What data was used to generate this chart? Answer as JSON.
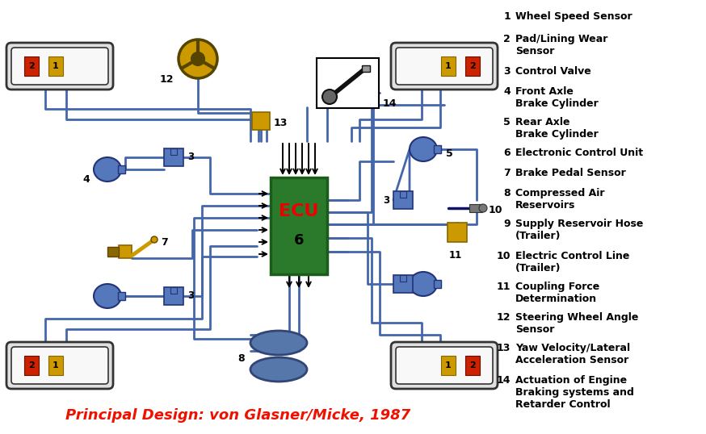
{
  "title": "Principal Design: von Glasner/Micke, 1987",
  "title_color": "#EE1100",
  "bg": "#FFFFFF",
  "wc": "#4466AA",
  "yc": "#CC9900",
  "rc": "#CC2200",
  "bc": "#4466AA",
  "gc": "#2B7A2B",
  "legend": [
    [
      "1",
      "Wheel Speed Sensor"
    ],
    [
      "2",
      "Pad/Lining Wear\nSensor"
    ],
    [
      "3",
      "Control Valve"
    ],
    [
      "4",
      "Front Axle\nBrake Cylinder"
    ],
    [
      "5",
      "Rear Axle\nBrake Cylinder"
    ],
    [
      "6",
      "Electronic Control Unit"
    ],
    [
      "7",
      "Brake Pedal Sensor"
    ],
    [
      "8",
      "Compressed Air\nReservoirs"
    ],
    [
      "9",
      "Supply Reservoir Hose\n(Trailer)"
    ],
    [
      "10",
      "Electric Control Line\n(Trailer)"
    ],
    [
      "11",
      "Coupling Force\nDetermination"
    ],
    [
      "12",
      "Steering Wheel Angle\nSensor"
    ],
    [
      "13",
      "Yaw Velocity/Lateral\nAcceleration Sensor"
    ],
    [
      "14",
      "Actuation of Engine\nBraking systems and\nRetarder Control"
    ]
  ]
}
